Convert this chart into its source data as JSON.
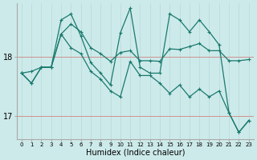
{
  "title": "",
  "xlabel": "Humidex (Indice chaleur)",
  "ylabel": "",
  "background_color": "#cdeaea",
  "grid_color_v": "#b8d8d8",
  "grid_color_h": "#d09090",
  "line_color": "#1a7a6e",
  "x": [
    0,
    1,
    2,
    3,
    4,
    5,
    6,
    7,
    8,
    9,
    10,
    11,
    12,
    13,
    14,
    15,
    16,
    17,
    18,
    19,
    20,
    21,
    22,
    23
  ],
  "series1": [
    17.72,
    17.75,
    17.82,
    17.82,
    18.38,
    18.55,
    18.42,
    18.15,
    18.05,
    17.92,
    18.07,
    18.1,
    17.93,
    17.93,
    17.92,
    18.13,
    18.12,
    18.17,
    18.22,
    18.1,
    18.1,
    17.93,
    17.93,
    17.95
  ],
  "series2": [
    17.72,
    17.55,
    17.82,
    17.82,
    18.62,
    18.72,
    18.35,
    17.9,
    17.72,
    17.52,
    18.4,
    18.82,
    17.82,
    17.72,
    17.72,
    18.72,
    18.62,
    18.42,
    18.62,
    18.42,
    18.2,
    17.05,
    16.72,
    16.92
  ],
  "series3": [
    17.72,
    17.55,
    17.82,
    17.82,
    18.38,
    18.15,
    18.05,
    17.75,
    17.62,
    17.42,
    17.32,
    17.92,
    17.68,
    17.68,
    17.55,
    17.38,
    17.52,
    17.32,
    17.45,
    17.32,
    17.42,
    17.05,
    16.72,
    16.92
  ],
  "ylim_min": 16.6,
  "ylim_max": 18.9,
  "ytick_vals": [
    17.0,
    18.0
  ],
  "ytick_labels": [
    "17",
    "18"
  ],
  "line_width": 0.9,
  "marker_size": 3,
  "marker": "+"
}
